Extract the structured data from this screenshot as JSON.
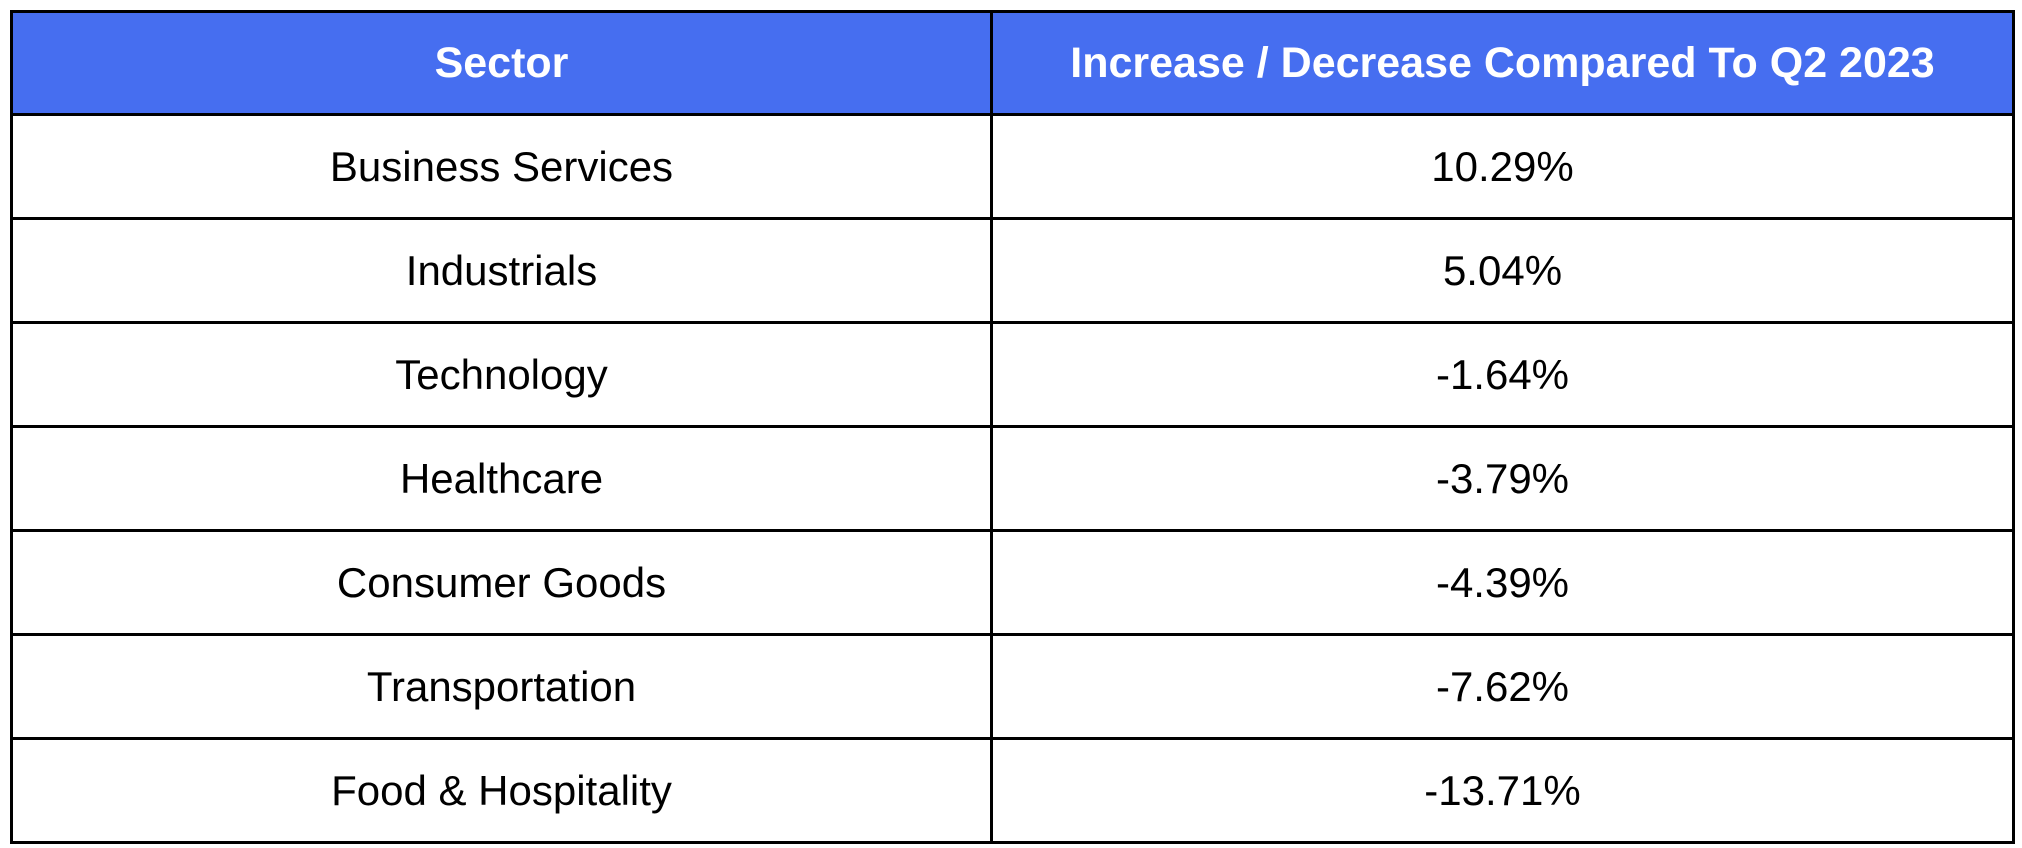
{
  "colors": {
    "header_background": "#466EF0",
    "header_text": "#FFFFFF",
    "grid_lines": "#000000",
    "cell_text": "#000000"
  },
  "table": {
    "headers": {
      "sector": "Sector",
      "change": "Increase / Decrease Compared To Q2 2023"
    },
    "rows": [
      {
        "sector": "Business Services",
        "change": "10.29%"
      },
      {
        "sector": "Industrials",
        "change": "5.04%"
      },
      {
        "sector": "Technology",
        "change": "-1.64%"
      },
      {
        "sector": "Healthcare",
        "change": "-3.79%"
      },
      {
        "sector": "Consumer Goods",
        "change": "-4.39%"
      },
      {
        "sector": "Transportation",
        "change": "-7.62%"
      },
      {
        "sector": "Food & Hospitality",
        "change": "-13.71%"
      }
    ]
  }
}
